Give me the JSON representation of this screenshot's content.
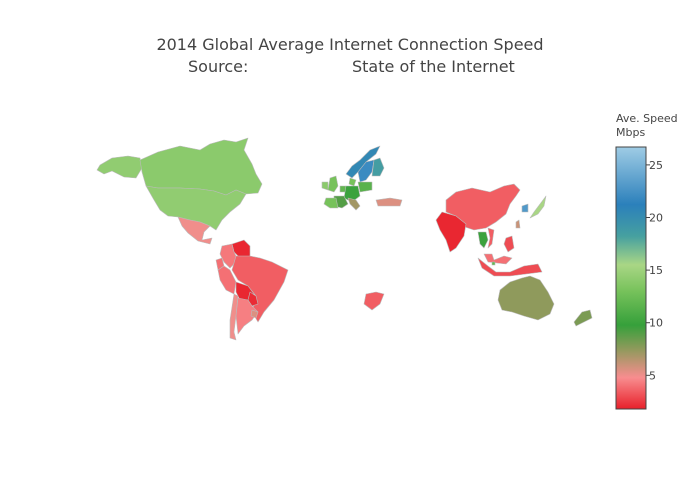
{
  "title": {
    "line1": "2014 Global Average Internet Connection Speed",
    "line2_left": "Source:",
    "line2_right": "State of the Internet"
  },
  "colorbar": {
    "title_line1": "Ave. Speed",
    "title_line2": "Mbps",
    "range": [
      1.8,
      26.7
    ],
    "ticks": [
      {
        "value": 5,
        "label": "5"
      },
      {
        "value": 10,
        "label": "10"
      },
      {
        "value": 15,
        "label": "15"
      },
      {
        "value": 20,
        "label": "20"
      },
      {
        "value": 25,
        "label": "25"
      }
    ],
    "colorscale": [
      [
        0.0,
        "#e8202a"
      ],
      [
        0.12,
        "#f88d8f"
      ],
      [
        0.23,
        "#8e9a5b"
      ],
      [
        0.32,
        "#36a03b"
      ],
      [
        0.45,
        "#77c25b"
      ],
      [
        0.55,
        "#a9d685"
      ],
      [
        0.66,
        "#46a0a0"
      ],
      [
        0.78,
        "#2b80bb"
      ],
      [
        1.0,
        "#9fcce5"
      ]
    ]
  },
  "chart_data": {
    "type": "choropleth",
    "projection": "natural earth (cropped)",
    "locations": [
      {
        "name": "United States",
        "value": 14.3
      },
      {
        "name": "Canada",
        "value": 14.0
      },
      {
        "name": "Alaska (US)",
        "value": 14.3
      },
      {
        "name": "Mexico",
        "value": 5.0
      },
      {
        "name": "Venezuela",
        "value": 2.0
      },
      {
        "name": "Colombia",
        "value": 4.2
      },
      {
        "name": "Ecuador",
        "value": 4.0
      },
      {
        "name": "Peru",
        "value": 4.0
      },
      {
        "name": "Brazil",
        "value": 3.5
      },
      {
        "name": "Bolivia",
        "value": 2.0
      },
      {
        "name": "Paraguay",
        "value": 2.1
      },
      {
        "name": "Chile",
        "value": 5.0
      },
      {
        "name": "Argentina",
        "value": 4.4
      },
      {
        "name": "Uruguay",
        "value": 5.5
      },
      {
        "name": "Norway",
        "value": 20.5
      },
      {
        "name": "Sweden",
        "value": 22.0
      },
      {
        "name": "Finland",
        "value": 18.5
      },
      {
        "name": "United Kingdom",
        "value": 13.0
      },
      {
        "name": "Ireland",
        "value": 14.0
      },
      {
        "name": "Netherlands",
        "value": 12.0
      },
      {
        "name": "Germany",
        "value": 10.0
      },
      {
        "name": "Denmark",
        "value": 13.0
      },
      {
        "name": "Poland",
        "value": 11.5
      },
      {
        "name": "France",
        "value": 9.0
      },
      {
        "name": "Spain",
        "value": 13.0
      },
      {
        "name": "Italy",
        "value": 7.0
      },
      {
        "name": "Turkey",
        "value": 5.5
      },
      {
        "name": "South Africa",
        "value": 3.5
      },
      {
        "name": "India",
        "value": 2.0
      },
      {
        "name": "China",
        "value": 3.5
      },
      {
        "name": "Taiwan",
        "value": 6.0
      },
      {
        "name": "South Korea",
        "value": 23.0
      },
      {
        "name": "Japan",
        "value": 15.5
      },
      {
        "name": "Thailand",
        "value": 10.0
      },
      {
        "name": "Vietnam",
        "value": 3.5
      },
      {
        "name": "Malaysia",
        "value": 4.0
      },
      {
        "name": "Philippines",
        "value": 3.0
      },
      {
        "name": "Indonesia",
        "value": 3.0
      },
      {
        "name": "Singapore",
        "value": 12.0
      },
      {
        "name": "Australia",
        "value": 7.5
      },
      {
        "name": "New Zealand",
        "value": 8.0
      }
    ]
  }
}
